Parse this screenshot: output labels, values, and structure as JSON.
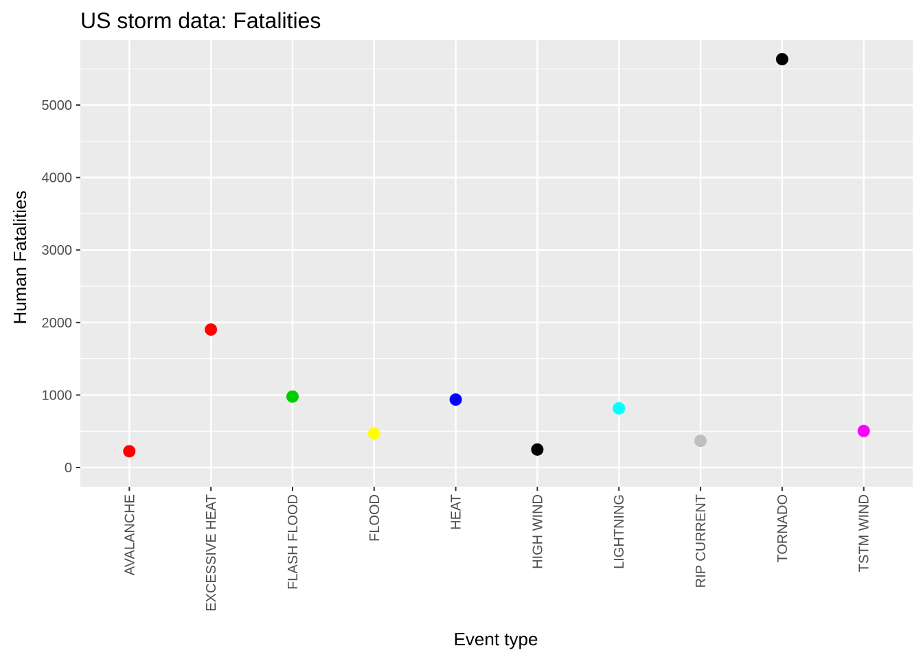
{
  "chart_data": {
    "type": "scatter",
    "title": "US storm data: Fatalities",
    "xlabel": "Event type",
    "ylabel": "Human Fatalities",
    "categories": [
      "AVALANCHE",
      "EXCESSIVE HEAT",
      "FLASH FLOOD",
      "FLOOD",
      "HEAT",
      "HIGH WIND",
      "LIGHTNING",
      "RIP CURRENT",
      "TORNADO",
      "TSTM WIND"
    ],
    "values": [
      224,
      1903,
      978,
      470,
      937,
      248,
      816,
      368,
      5633,
      504
    ],
    "colors": [
      "#FF0000",
      "#FF0000",
      "#00CD00",
      "#FFFF00",
      "#0000FF",
      "#000000",
      "#00FFFF",
      "#BEBEBE",
      "#000000",
      "#FF00FF"
    ],
    "ylim": [
      -265,
      5900
    ],
    "yticks": [
      0,
      1000,
      2000,
      3000,
      4000,
      5000
    ],
    "grid": true,
    "legend": "none",
    "panel_color": "#EBEBEB",
    "grid_color": "#FFFFFF"
  }
}
